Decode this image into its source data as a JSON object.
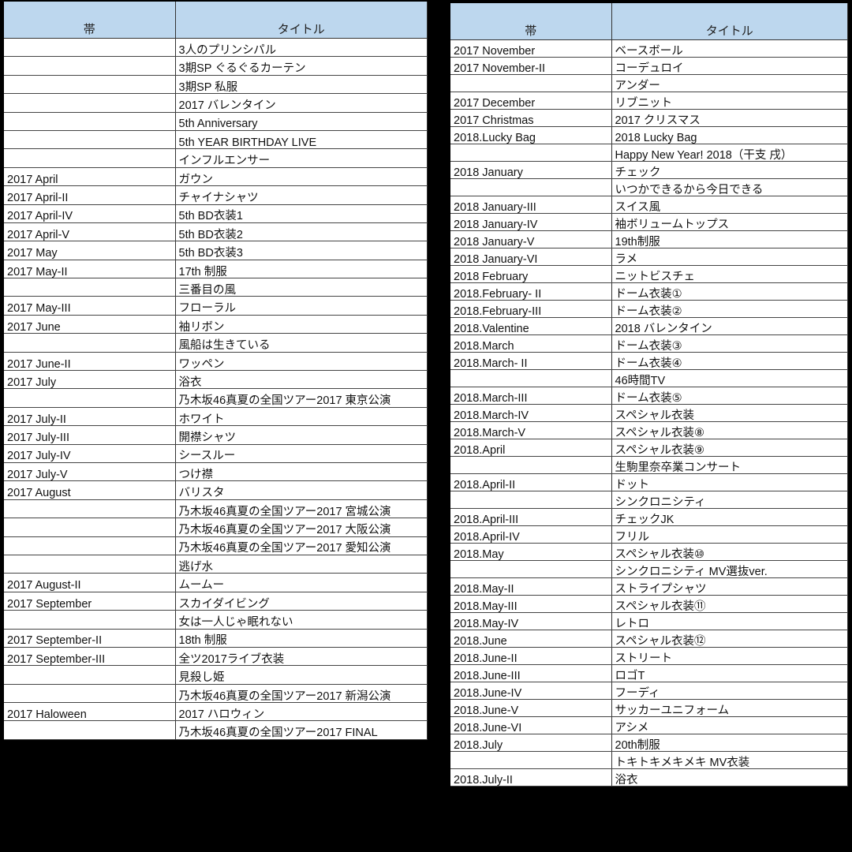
{
  "left_table": {
    "headers": [
      "帯",
      "タイトル"
    ],
    "rows": [
      [
        "",
        "3人のプリンシパル"
      ],
      [
        "",
        "3期SP ぐるぐるカーテン"
      ],
      [
        "",
        "3期SP 私服"
      ],
      [
        "",
        "2017 バレンタイン"
      ],
      [
        "",
        "5th Anniversary"
      ],
      [
        "",
        "5th YEAR BIRTHDAY LIVE"
      ],
      [
        "",
        "インフルエンサー"
      ],
      [
        "2017 April",
        "ガウン"
      ],
      [
        "2017 April-II",
        "チャイナシャツ"
      ],
      [
        "2017 April-IV",
        "5th BD衣装1"
      ],
      [
        "2017 April-V",
        "5th BD衣装2"
      ],
      [
        "2017 May",
        "5th BD衣装3"
      ],
      [
        "2017 May-II",
        "17th 制服"
      ],
      [
        "",
        "三番目の風"
      ],
      [
        "2017 May-III",
        "フローラル"
      ],
      [
        "2017 June",
        "袖リボン"
      ],
      [
        "",
        "風船は生きている"
      ],
      [
        "2017 June-II",
        "ワッペン"
      ],
      [
        "2017 July",
        "浴衣"
      ],
      [
        "",
        "乃木坂46真夏の全国ツアー2017 東京公演"
      ],
      [
        "2017 July-II",
        "ホワイト"
      ],
      [
        "2017 July-III",
        "開襟シャツ"
      ],
      [
        "2017 July-IV",
        "シースルー"
      ],
      [
        "2017 July-V",
        "つけ襟"
      ],
      [
        "2017 August",
        "バリスタ"
      ],
      [
        "",
        "乃木坂46真夏の全国ツアー2017 宮城公演"
      ],
      [
        "",
        "乃木坂46真夏の全国ツアー2017 大阪公演"
      ],
      [
        "",
        "乃木坂46真夏の全国ツアー2017 愛知公演"
      ],
      [
        "",
        "逃げ水"
      ],
      [
        "2017 August-II",
        "ムームー"
      ],
      [
        "2017 September",
        "スカイダイビング"
      ],
      [
        "",
        "女は一人じゃ眠れない"
      ],
      [
        "2017 September-II",
        "18th 制服"
      ],
      [
        "2017 September-III",
        "全ツ2017ライブ衣装"
      ],
      [
        "",
        "見殺し姫"
      ],
      [
        "",
        "乃木坂46真夏の全国ツアー2017 新潟公演"
      ],
      [
        "2017 Haloween",
        "2017 ハロウィン"
      ],
      [
        "",
        "乃木坂46真夏の全国ツアー2017 FINAL"
      ]
    ]
  },
  "right_table": {
    "headers": [
      "帯",
      "タイトル"
    ],
    "rows": [
      [
        "2017 November",
        "ベースボール"
      ],
      [
        "2017 November-II",
        "コーデュロイ"
      ],
      [
        "",
        "アンダー"
      ],
      [
        "2017 December",
        "リブニット"
      ],
      [
        "2017 Christmas",
        "2017 クリスマス"
      ],
      [
        "2018.Lucky Bag",
        "2018 Lucky Bag"
      ],
      [
        "",
        "Happy New Year! 2018（干支 戌）"
      ],
      [
        "2018 January",
        "チェック"
      ],
      [
        "",
        "いつかできるから今日できる"
      ],
      [
        "2018 January-III",
        "スイス風"
      ],
      [
        "2018 January-IV",
        "袖ボリュームトップス"
      ],
      [
        "2018 January-V",
        "19th制服"
      ],
      [
        "2018 January-VI",
        "ラメ"
      ],
      [
        "2018 February",
        "ニットビスチェ"
      ],
      [
        "2018.February- II",
        "ドーム衣装①"
      ],
      [
        "2018.February-III",
        "ドーム衣装②"
      ],
      [
        "2018.Valentine",
        "2018 バレンタイン"
      ],
      [
        "2018.March",
        "ドーム衣装③"
      ],
      [
        "2018.March- II",
        "ドーム衣装④"
      ],
      [
        "",
        "46時間TV"
      ],
      [
        "2018.March-III",
        "ドーム衣装⑤"
      ],
      [
        "2018.March-IV",
        "スペシャル衣装"
      ],
      [
        "2018.March-V",
        "スペシャル衣装⑧"
      ],
      [
        "2018.April",
        "スペシャル衣装⑨"
      ],
      [
        "",
        "生駒里奈卒業コンサート"
      ],
      [
        "2018.April-II",
        "ドット"
      ],
      [
        "",
        "シンクロニシティ"
      ],
      [
        "2018.April-III",
        "チェックJK"
      ],
      [
        "2018.April-IV",
        "フリル"
      ],
      [
        "2018.May",
        "スペシャル衣装⑩"
      ],
      [
        "",
        "シンクロニシティ MV選抜ver."
      ],
      [
        "2018.May-II",
        "ストライプシャツ"
      ],
      [
        "2018.May-III",
        "スペシャル衣装⑪"
      ],
      [
        "2018.May-IV",
        "レトロ"
      ],
      [
        "2018.June",
        "スペシャル衣装⑫"
      ],
      [
        "2018.June-II",
        "ストリート"
      ],
      [
        "2018.June-III",
        "ロゴT"
      ],
      [
        "2018.June-IV",
        "フーディ"
      ],
      [
        "2018.June-V",
        "サッカーユニフォーム"
      ],
      [
        "2018.June-VI",
        "アシメ"
      ],
      [
        "2018.July",
        "20th制服"
      ],
      [
        "",
        "トキトキメキメキ MV衣装"
      ],
      [
        "2018.July-II",
        "浴衣"
      ]
    ]
  }
}
